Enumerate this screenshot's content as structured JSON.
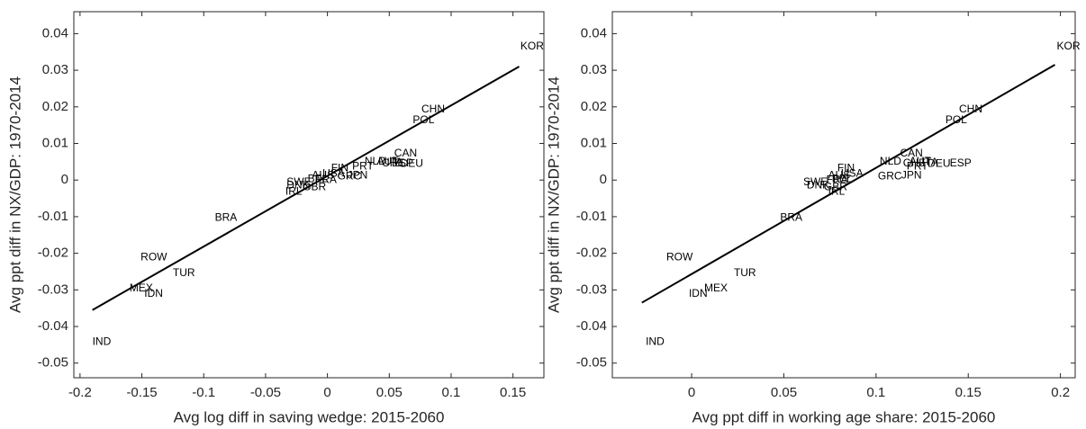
{
  "chart_data": [
    {
      "type": "scatter",
      "xlabel": "Avg log diff in saving wedge: 2015-2060",
      "ylabel": "Avg ppt diff in NX/GDP: 1970-2014",
      "xlim": [
        -0.205,
        0.175
      ],
      "ylim": [
        -0.054,
        0.046
      ],
      "xticks": [
        -0.2,
        -0.15,
        -0.1,
        -0.05,
        0,
        0.05,
        0.1,
        0.15
      ],
      "yticks": [
        -0.05,
        -0.04,
        -0.03,
        -0.02,
        -0.01,
        0,
        0.01,
        0.02,
        0.03,
        0.04
      ],
      "labels": [
        "KOR",
        "CHN",
        "POL",
        "CAN",
        "DEU",
        "NLD",
        "AUT",
        "CHE",
        "ITA",
        "ESP",
        "PRT",
        "JPN",
        "FIN",
        "GRC",
        "USA",
        "AUS",
        "BEL",
        "FRA",
        "SWE",
        "DNK",
        "GBR",
        "IRL",
        "BRA",
        "ROW",
        "TUR",
        "MEX",
        "IDN",
        "IND"
      ],
      "x": [
        0.156,
        0.076,
        0.069,
        0.054,
        0.059,
        0.03,
        0.04,
        0.044,
        0.048,
        0.052,
        0.02,
        0.016,
        0.003,
        0.008,
        -0.004,
        -0.0125,
        -0.016,
        -0.01,
        -0.033,
        -0.033,
        -0.02,
        -0.034,
        -0.091,
        -0.151,
        -0.125,
        -0.16,
        -0.148,
        -0.19
      ],
      "values": [
        0.0365,
        0.0193,
        0.0163,
        0.0072,
        0.0044,
        0.005,
        0.005,
        0.0045,
        0.0048,
        0.0045,
        0.0037,
        0.0012,
        0.0032,
        0.001,
        0.0017,
        0.0012,
        0.0002,
        0,
        -0.0007,
        -0.0015,
        -0.002,
        -0.0032,
        -0.0104,
        -0.0212,
        -0.0254,
        -0.0296,
        -0.0311,
        -0.0442
      ],
      "fit": {
        "x": [
          -0.19,
          0.155
        ],
        "y": [
          -0.0355,
          0.031
        ]
      },
      "color": "#000000"
    },
    {
      "type": "scatter",
      "xlabel": "Avg ppt diff in working age share: 2015-2060",
      "ylabel": "Avg ppt diff in NX/GDP: 1970-2014",
      "xlim": [
        -0.043,
        0.208
      ],
      "ylim": [
        -0.054,
        0.046
      ],
      "xticks": [
        0,
        0.05,
        0.1,
        0.15,
        0.2
      ],
      "yticks": [
        -0.05,
        -0.04,
        -0.03,
        -0.02,
        -0.01,
        0,
        0.01,
        0.02,
        0.03,
        0.04
      ],
      "labels": [
        "KOR",
        "CHN",
        "POL",
        "CAN",
        "DEU",
        "NLD",
        "AUT",
        "CHE",
        "ITA",
        "ESP",
        "PRT",
        "JPN",
        "FIN",
        "GRC",
        "USA",
        "AUS",
        "BEL",
        "FRA",
        "SWE",
        "DNK",
        "GBR",
        "IRL",
        "BRA",
        "ROW",
        "TUR",
        "MEX",
        "IDN",
        "IND"
      ],
      "x": [
        0.198,
        0.145,
        0.1376,
        0.113,
        0.128,
        0.102,
        0.118,
        0.1146,
        0.125,
        0.14,
        0.1166,
        0.1137,
        0.079,
        0.101,
        0.081,
        0.074,
        0.076,
        0.073,
        0.0605,
        0.0624,
        0.0717,
        0.074,
        0.048,
        -0.0137,
        0.0229,
        0.0068,
        -0.0015,
        -0.0249
      ],
      "values": [
        0.0365,
        0.0193,
        0.0163,
        0.0072,
        0.0044,
        0.005,
        0.005,
        0.0045,
        0.0048,
        0.0045,
        0.0037,
        0.0012,
        0.0032,
        0.001,
        0.0017,
        0.0012,
        0.0002,
        0,
        -0.0007,
        -0.0015,
        -0.002,
        -0.0032,
        -0.0104,
        -0.0212,
        -0.0254,
        -0.0296,
        -0.0311,
        -0.0442
      ],
      "fit": {
        "x": [
          -0.027,
          0.197
        ],
        "y": [
          -0.0335,
          0.0315
        ]
      },
      "color": "#000000"
    }
  ]
}
